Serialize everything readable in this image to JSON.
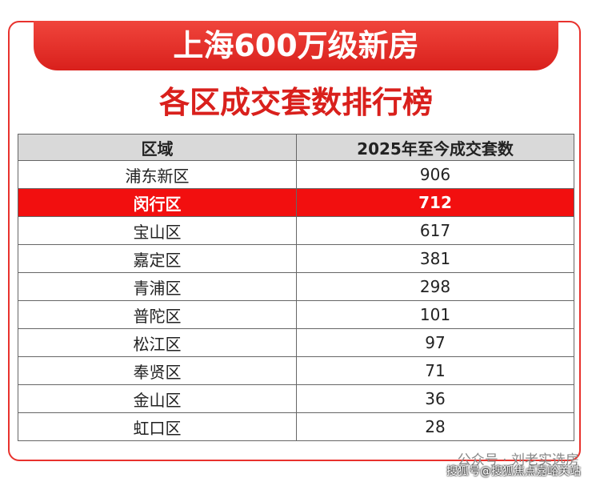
{
  "header": {
    "title": "上海600万级新房",
    "subtitle": "各区成交套数排行榜"
  },
  "table": {
    "columns": [
      "区域",
      "2025年至今成交套数"
    ],
    "rows": [
      [
        "浦东新区",
        906
      ],
      [
        "闵行区",
        712
      ],
      [
        "宝山区",
        617
      ],
      [
        "嘉定区",
        381
      ],
      [
        "青浦区",
        298
      ],
      [
        "普陀区",
        101
      ],
      [
        "松江区",
        97
      ],
      [
        "奉贤区",
        71
      ],
      [
        "金山区",
        36
      ],
      [
        "虹口区",
        28
      ]
    ]
  },
  "watermark": {
    "account": "公众号 · 刘老实选房",
    "source": "搜狐号@搜狐焦点嘉峪关站"
  }
}
